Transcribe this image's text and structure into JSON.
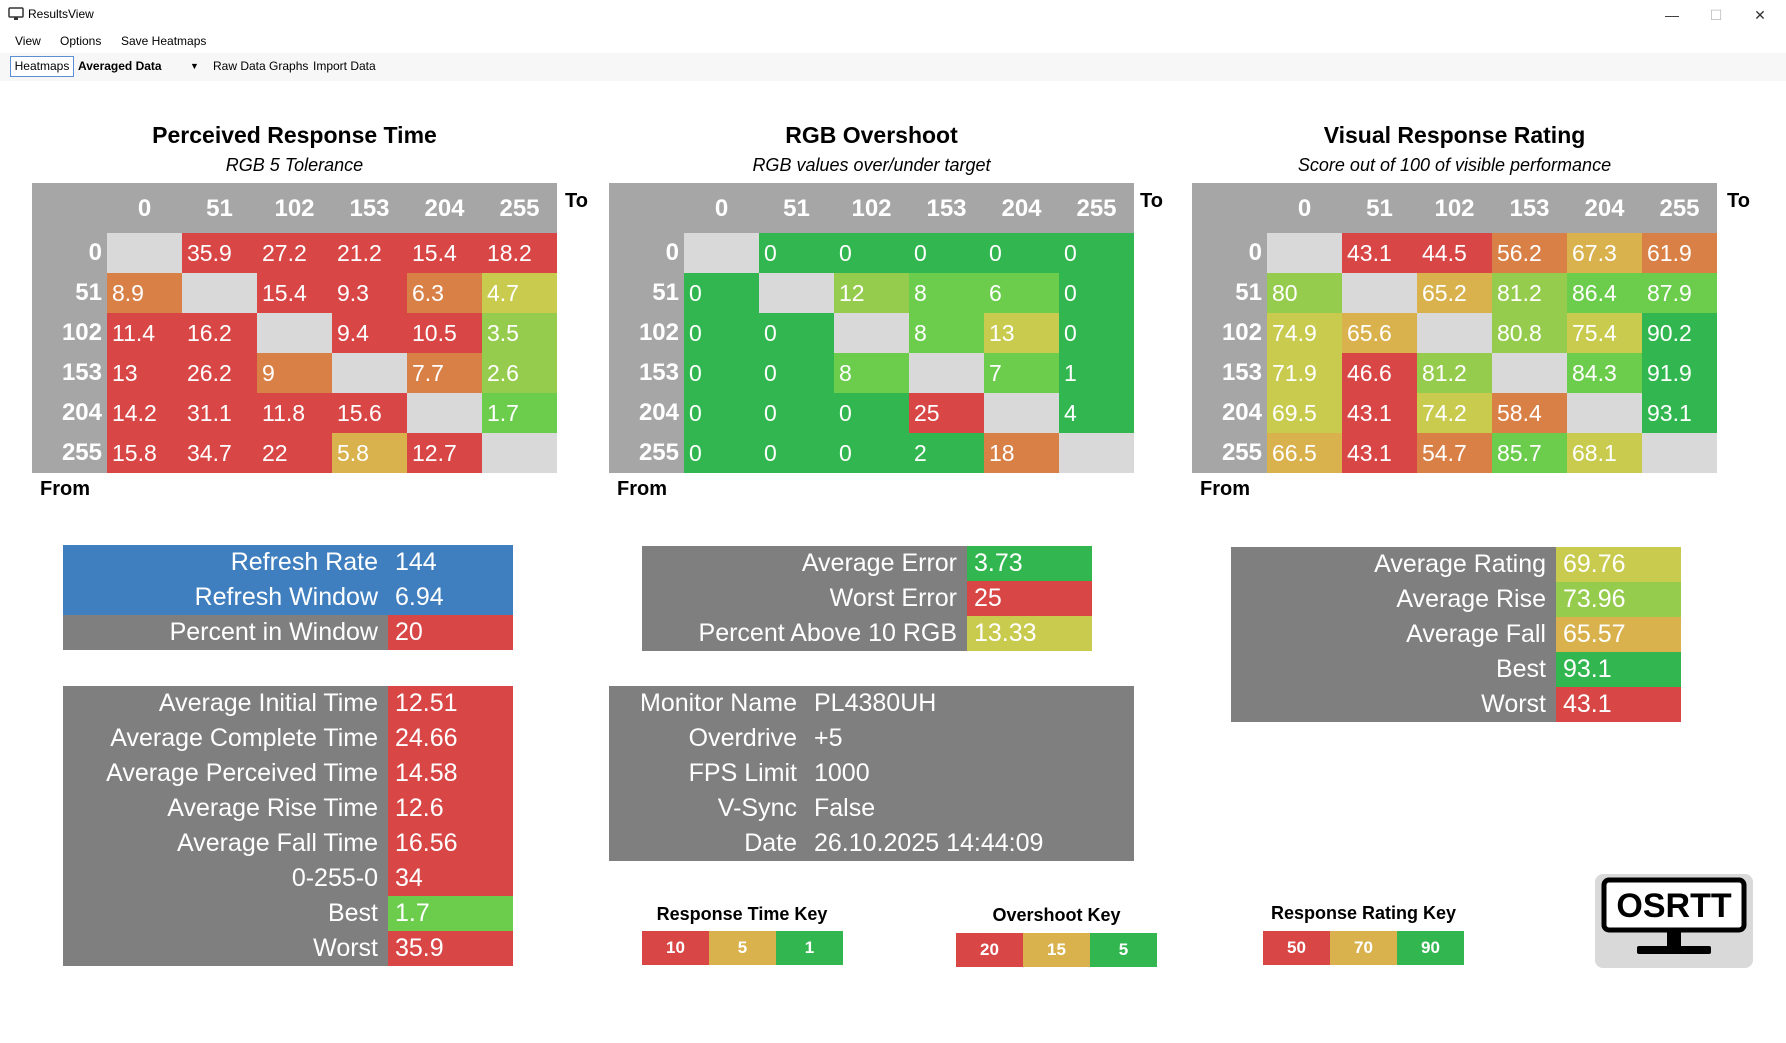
{
  "window": {
    "title": "ResultsView",
    "minimize": "—",
    "maximize": "☐",
    "close": "✕"
  },
  "menu": [
    "View",
    "Options",
    "Save Heatmaps"
  ],
  "toolbar": {
    "heatmaps": "Heatmaps",
    "mode": "Averaged Data",
    "raw": "Raw Data Graphs",
    "import": "Import Data"
  },
  "colors": {
    "red": "#d94646",
    "orange": "#d98046",
    "amber": "#d9b24d",
    "yellow": "#c8cb4d",
    "lime": "#96cc4d",
    "lgreen": "#6ccd4d",
    "green": "#32b750",
    "grey": "#7f7f7f",
    "blue": "#3f7fbf",
    "diag": "#d9d9d9"
  },
  "axes": {
    "levels": [
      "0",
      "51",
      "102",
      "153",
      "204",
      "255"
    ],
    "to": "To",
    "from": "From"
  },
  "heatmaps": [
    {
      "title": "Perceived Response Time",
      "subtitle": "RGB 5 Tolerance",
      "rows": [
        [
          "",
          "35.9",
          "27.2",
          "21.2",
          "15.4",
          "18.2"
        ],
        [
          "8.9",
          "",
          "15.4",
          "9.3",
          "6.3",
          "4.7"
        ],
        [
          "11.4",
          "16.2",
          "",
          "9.4",
          "10.5",
          "3.5"
        ],
        [
          "13",
          "26.2",
          "9",
          "",
          "7.7",
          "2.6"
        ],
        [
          "14.2",
          "31.1",
          "11.8",
          "15.6",
          "",
          "1.7"
        ],
        [
          "15.8",
          "34.7",
          "22",
          "5.8",
          "12.7",
          ""
        ]
      ],
      "colors": [
        [
          "diag",
          "red",
          "red",
          "red",
          "red",
          "red"
        ],
        [
          "orange",
          "diag",
          "red",
          "red",
          "orange",
          "yellow"
        ],
        [
          "red",
          "red",
          "diag",
          "red",
          "red",
          "lime"
        ],
        [
          "red",
          "red",
          "orange",
          "diag",
          "orange",
          "lime"
        ],
        [
          "red",
          "red",
          "red",
          "red",
          "diag",
          "lgreen"
        ],
        [
          "red",
          "red",
          "red",
          "amber",
          "red",
          "diag"
        ]
      ]
    },
    {
      "title": "RGB Overshoot",
      "subtitle": "RGB values over/under target",
      "rows": [
        [
          "",
          "0",
          "0",
          "0",
          "0",
          "0"
        ],
        [
          "0",
          "",
          "12",
          "8",
          "6",
          "0"
        ],
        [
          "0",
          "0",
          "",
          "8",
          "13",
          "0"
        ],
        [
          "0",
          "0",
          "8",
          "",
          "7",
          "1"
        ],
        [
          "0",
          "0",
          "0",
          "25",
          "",
          "4"
        ],
        [
          "0",
          "0",
          "0",
          "2",
          "18",
          ""
        ]
      ],
      "colors": [
        [
          "diag",
          "green",
          "green",
          "green",
          "green",
          "green"
        ],
        [
          "green",
          "diag",
          "lime",
          "lgreen",
          "lgreen",
          "green"
        ],
        [
          "green",
          "green",
          "diag",
          "lgreen",
          "yellow",
          "green"
        ],
        [
          "green",
          "green",
          "lgreen",
          "diag",
          "lgreen",
          "green"
        ],
        [
          "green",
          "green",
          "green",
          "red",
          "diag",
          "green"
        ],
        [
          "green",
          "green",
          "green",
          "green",
          "orange",
          "diag"
        ]
      ]
    },
    {
      "title": "Visual Response Rating",
      "subtitle": "Score out of 100 of visible performance",
      "rows": [
        [
          "",
          "43.1",
          "44.5",
          "56.2",
          "67.3",
          "61.9"
        ],
        [
          "80",
          "",
          "65.2",
          "81.2",
          "86.4",
          "87.9"
        ],
        [
          "74.9",
          "65.6",
          "",
          "80.8",
          "75.4",
          "90.2"
        ],
        [
          "71.9",
          "46.6",
          "81.2",
          "",
          "84.3",
          "91.9"
        ],
        [
          "69.5",
          "43.1",
          "74.2",
          "58.4",
          "",
          "93.1"
        ],
        [
          "66.5",
          "43.1",
          "54.7",
          "85.7",
          "68.1",
          ""
        ]
      ],
      "colors": [
        [
          "diag",
          "red",
          "red",
          "orange",
          "amber",
          "orange"
        ],
        [
          "lime",
          "diag",
          "amber",
          "lime",
          "lgreen",
          "lgreen"
        ],
        [
          "yellow",
          "amber",
          "diag",
          "lime",
          "yellow",
          "green"
        ],
        [
          "yellow",
          "red",
          "lime",
          "diag",
          "lgreen",
          "green"
        ],
        [
          "yellow",
          "red",
          "yellow",
          "orange",
          "diag",
          "green"
        ],
        [
          "amber",
          "red",
          "orange",
          "lgreen",
          "yellow",
          "diag"
        ]
      ]
    }
  ],
  "refresh_panel": [
    {
      "label": "Refresh Rate",
      "value": "144",
      "lcolor": "blue",
      "vcolor": "blue"
    },
    {
      "label": "Refresh Window",
      "value": "6.94",
      "lcolor": "blue",
      "vcolor": "blue"
    },
    {
      "label": "Percent in Window",
      "value": "20",
      "lcolor": "grey",
      "vcolor": "red"
    }
  ],
  "time_panel": [
    {
      "label": "Average Initial Time",
      "value": "12.51",
      "vcolor": "red"
    },
    {
      "label": "Average Complete Time",
      "value": "24.66",
      "vcolor": "red"
    },
    {
      "label": "Average Perceived Time",
      "value": "14.58",
      "vcolor": "red"
    },
    {
      "label": "Average Rise Time",
      "value": "12.6",
      "vcolor": "red"
    },
    {
      "label": "Average Fall Time",
      "value": "16.56",
      "vcolor": "red"
    },
    {
      "label": "0-255-0",
      "value": "34",
      "vcolor": "red"
    },
    {
      "label": "Best",
      "value": "1.7",
      "vcolor": "lgreen"
    },
    {
      "label": "Worst",
      "value": "35.9",
      "vcolor": "red"
    }
  ],
  "error_panel": [
    {
      "label": "Average Error",
      "value": "3.73",
      "vcolor": "green"
    },
    {
      "label": "Worst Error",
      "value": "25",
      "vcolor": "red"
    },
    {
      "label": "Percent Above 10 RGB",
      "value": "13.33",
      "vcolor": "yellow"
    }
  ],
  "monitor_panel": [
    {
      "label": "Monitor Name",
      "value": "PL4380UH"
    },
    {
      "label": "Overdrive",
      "value": "+5"
    },
    {
      "label": "FPS Limit",
      "value": "1000"
    },
    {
      "label": "V-Sync",
      "value": "False"
    },
    {
      "label": "Date",
      "value": "26.10.2025 14:44:09"
    }
  ],
  "rating_panel": [
    {
      "label": "Average Rating",
      "value": "69.76",
      "vcolor": "yellow"
    },
    {
      "label": "Average Rise",
      "value": "73.96",
      "vcolor": "lime"
    },
    {
      "label": "Average Fall",
      "value": "65.57",
      "vcolor": "amber"
    },
    {
      "label": "Best",
      "value": "93.1",
      "vcolor": "green"
    },
    {
      "label": "Worst",
      "value": "43.1",
      "vcolor": "red"
    }
  ],
  "keys": [
    {
      "title": "Response Time Key",
      "values": [
        "10",
        "5",
        "1"
      ]
    },
    {
      "title": "Overshoot Key",
      "values": [
        "20",
        "15",
        "5"
      ]
    },
    {
      "title": "Response Rating Key",
      "values": [
        "50",
        "70",
        "90"
      ]
    }
  ],
  "logo": "OSRTT"
}
